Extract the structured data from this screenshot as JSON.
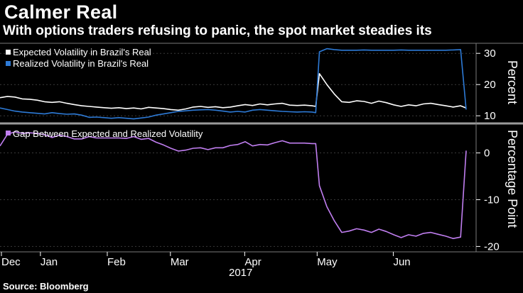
{
  "headline": "Calmer Real",
  "subheadline": "With options traders refusing to panic, the spot market steadies its",
  "source": "Source: Bloomberg",
  "chart_data": [
    {
      "type": "line",
      "title": "",
      "x": [
        0,
        4,
        8,
        12,
        16,
        20,
        24,
        28,
        32,
        36,
        40,
        44,
        48,
        52,
        56,
        60,
        64,
        68,
        72,
        76,
        80,
        84,
        88,
        92,
        96,
        100,
        104,
        108,
        112,
        116,
        120,
        124,
        128,
        132,
        136,
        140,
        144,
        148,
        152,
        156,
        160,
        164,
        168,
        170,
        172,
        176,
        180,
        184,
        188,
        192,
        196,
        200,
        204,
        208,
        212,
        216,
        220,
        224,
        228,
        232,
        236,
        240,
        244,
        248,
        251
      ],
      "series": [
        {
          "name": "Expected Volatility in Brazil's Real",
          "color": "#ffffff",
          "values": [
            15.8,
            16.2,
            16.0,
            15.4,
            15.3,
            15.0,
            14.5,
            14.3,
            14.5,
            14.0,
            13.6,
            13.2,
            13.0,
            12.8,
            12.6,
            12.4,
            12.6,
            12.3,
            12.5,
            12.2,
            12.7,
            12.5,
            12.3,
            12.0,
            11.8,
            12.2,
            12.8,
            13.0,
            12.7,
            12.9,
            12.6,
            12.8,
            13.2,
            13.6,
            13.3,
            13.8,
            13.5,
            13.8,
            14.0,
            13.4,
            13.3,
            13.4,
            13.2,
            13.0,
            23.5,
            20.0,
            17.0,
            14.5,
            14.3,
            14.8,
            14.6,
            14.0,
            14.7,
            14.2,
            13.5,
            13.0,
            13.5,
            13.2,
            13.8,
            14.0,
            13.6,
            13.2,
            12.8,
            13.2,
            12.5
          ]
        },
        {
          "name": "Realized Volatility in Brazil's Real",
          "color": "#2d7ad6",
          "values": [
            12.5,
            12.0,
            11.5,
            11.2,
            11.0,
            10.8,
            10.6,
            11.0,
            10.7,
            10.5,
            10.6,
            10.2,
            9.5,
            9.6,
            9.4,
            9.2,
            9.4,
            9.2,
            9.0,
            9.3,
            9.6,
            10.2,
            10.6,
            11.0,
            11.4,
            11.6,
            11.8,
            11.9,
            12.0,
            11.8,
            11.5,
            11.2,
            11.4,
            11.2,
            11.8,
            12.0,
            11.8,
            11.6,
            11.4,
            11.3,
            11.2,
            11.3,
            11.2,
            11.0,
            30.5,
            31.5,
            31.2,
            31.0,
            31.0,
            31.0,
            31.1,
            31.0,
            31.0,
            31.0,
            31.0,
            31.1,
            31.0,
            31.0,
            31.0,
            31.0,
            31.0,
            31.0,
            31.1,
            31.2,
            12.0
          ]
        }
      ],
      "xlabel": "",
      "ylabel": "Percent",
      "ylim": [
        8,
        33
      ],
      "yticks": [
        "10",
        "20",
        "30"
      ],
      "legend_position": "top-left"
    },
    {
      "type": "line",
      "title": "",
      "x": [
        0,
        4,
        8,
        12,
        16,
        20,
        24,
        28,
        32,
        36,
        40,
        44,
        48,
        52,
        56,
        60,
        64,
        68,
        72,
        76,
        80,
        84,
        88,
        92,
        96,
        100,
        104,
        108,
        112,
        116,
        120,
        124,
        128,
        132,
        136,
        140,
        144,
        148,
        152,
        156,
        160,
        164,
        168,
        170,
        172,
        176,
        180,
        184,
        188,
        192,
        196,
        200,
        204,
        208,
        212,
        216,
        220,
        224,
        228,
        232,
        236,
        240,
        244,
        248,
        251
      ],
      "series": [
        {
          "name": "Gap Between Expected and Realized Volatility",
          "color": "#c07ef0",
          "values": [
            1.5,
            4.0,
            4.5,
            4.2,
            4.3,
            4.2,
            3.9,
            3.3,
            3.8,
            3.5,
            3.0,
            3.0,
            3.5,
            3.2,
            3.2,
            3.2,
            3.2,
            3.1,
            3.5,
            2.9,
            3.1,
            2.3,
            1.7,
            1.0,
            0.4,
            0.6,
            1.0,
            1.1,
            0.7,
            1.1,
            1.1,
            1.6,
            1.8,
            2.4,
            1.5,
            1.8,
            1.7,
            2.2,
            2.6,
            2.1,
            2.1,
            2.1,
            2.0,
            2.0,
            -7.0,
            -11.5,
            -14.5,
            -17.0,
            -16.7,
            -16.2,
            -16.5,
            -17.0,
            -16.3,
            -16.8,
            -17.5,
            -18.1,
            -17.5,
            -17.8,
            -17.2,
            -17.0,
            -17.4,
            -17.8,
            -18.3,
            -18.0,
            0.5
          ]
        }
      ],
      "xlabel": "",
      "ylabel": "Percentage Point",
      "ylim": [
        -21,
        6
      ],
      "yticks": [
        "0",
        "-10",
        "-20"
      ],
      "legend_position": "top-left"
    }
  ],
  "x_axis": {
    "tick_labels": [
      "Dec",
      "Jan",
      "Feb",
      "Mar",
      "Apr",
      "May",
      "Jun"
    ],
    "year_label": "2017"
  }
}
